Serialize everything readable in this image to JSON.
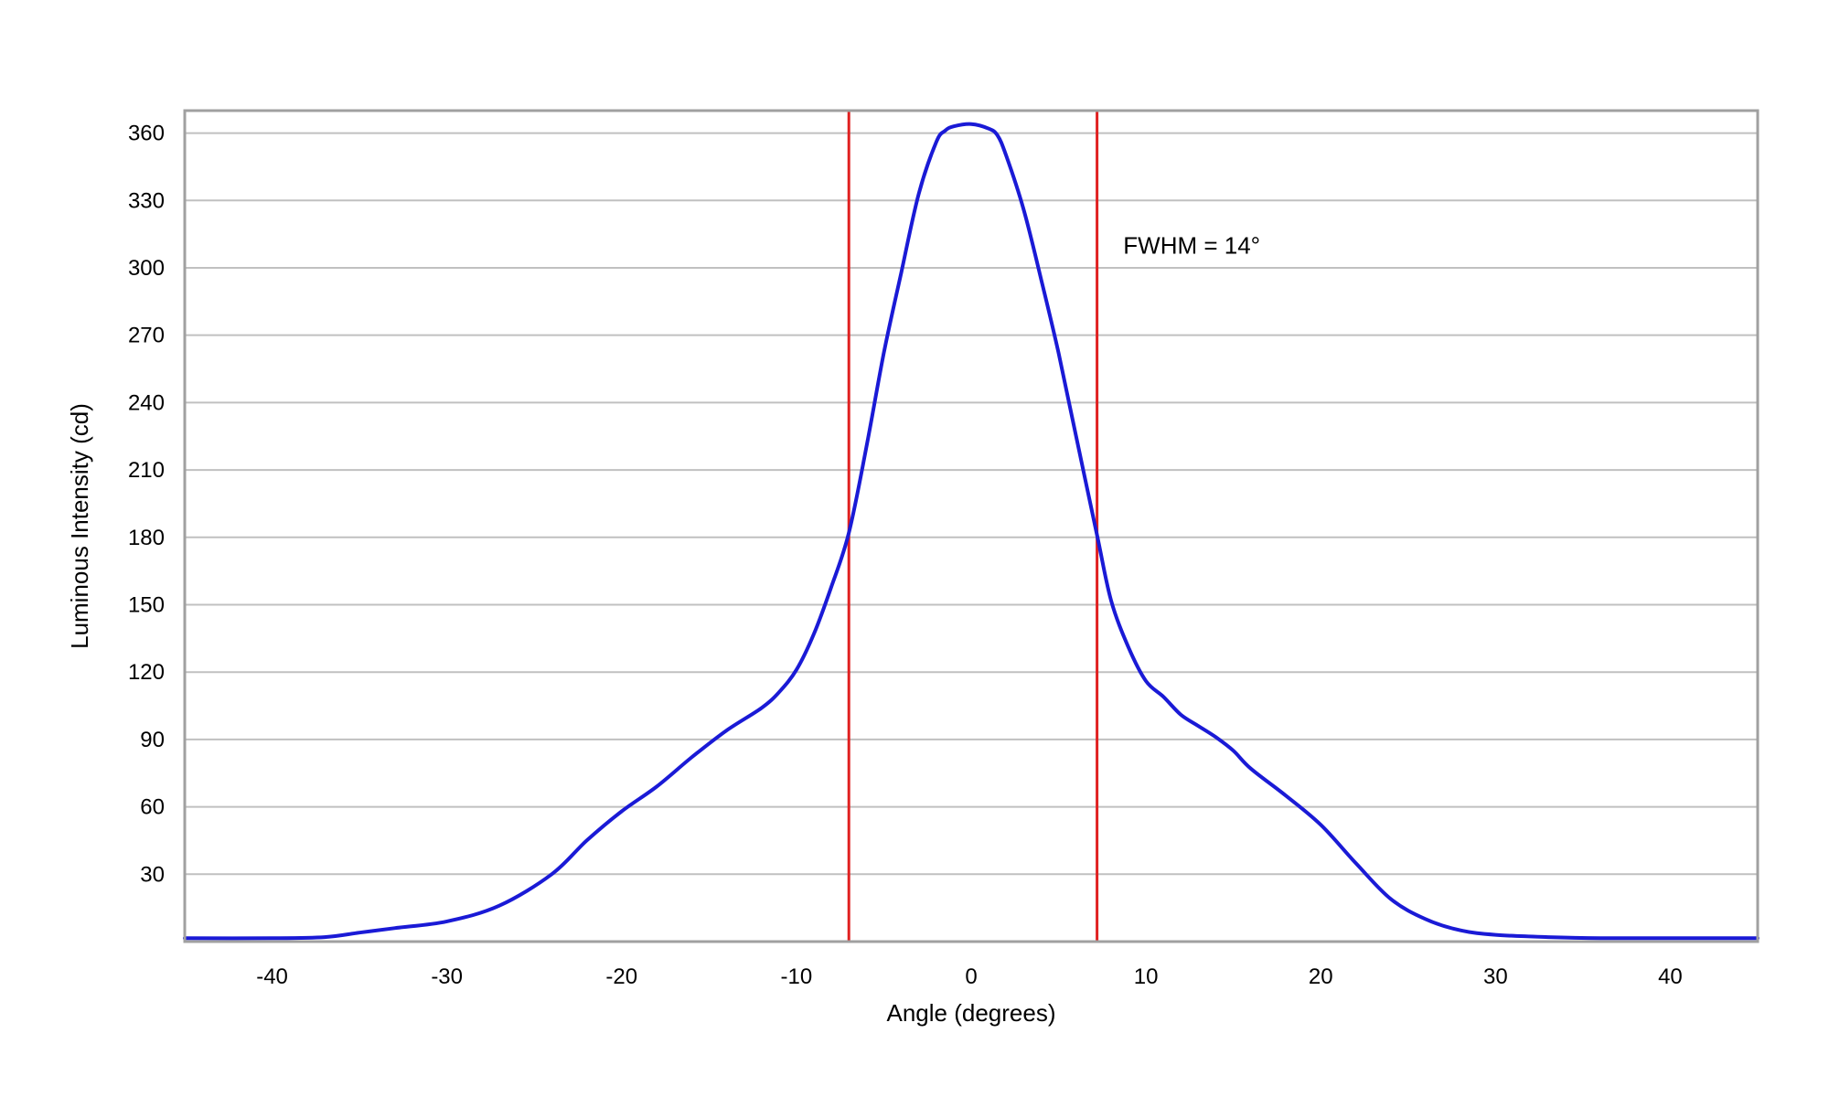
{
  "chart_data": {
    "type": "line",
    "title": "",
    "xlabel": "Angle (degrees)",
    "ylabel": "Luminous Intensity (cd)",
    "xlim": [
      -45,
      45
    ],
    "ylim": [
      0,
      370
    ],
    "xticks": [
      -40,
      -30,
      -20,
      -10,
      0,
      10,
      20,
      30,
      40
    ],
    "yticks": [
      30,
      60,
      90,
      120,
      150,
      180,
      210,
      240,
      270,
      300,
      330,
      360
    ],
    "grid": "horizontal",
    "legend": "none",
    "annotation": "FWHM = 14°",
    "colors": {
      "curve": "#1a1ad6",
      "markers": "#e02020",
      "grid": "#c0c0c0",
      "frame": "#a0a0a0"
    },
    "vertical_markers": [
      -7.0,
      7.2
    ],
    "series": [
      {
        "x": [
          -45,
          -40,
          -37,
          -35,
          -33,
          -30,
          -27,
          -24,
          -22,
          -20,
          -18,
          -16,
          -14,
          -12,
          -11,
          -10,
          -9,
          -8,
          -7,
          -6,
          -5,
          -4,
          -3,
          -2,
          -1.5,
          -1,
          0,
          1,
          1.5,
          2,
          3,
          4,
          5,
          6,
          7.2,
          8,
          9,
          10,
          11,
          12,
          13,
          14,
          15,
          16,
          18,
          20,
          22,
          24,
          26,
          28,
          30,
          33,
          36,
          40,
          45
        ],
        "y": [
          1.5,
          1.5,
          2,
          4,
          6,
          9,
          16,
          30,
          45,
          58,
          69,
          82,
          94,
          104,
          111,
          121,
          137,
          158,
          182,
          220,
          262,
          298,
          333,
          356,
          361,
          363,
          364,
          362,
          359,
          350,
          326,
          295,
          262,
          225,
          181,
          152,
          131,
          116,
          109,
          101,
          96,
          91,
          85,
          77,
          65,
          52,
          35,
          19,
          10,
          5,
          3,
          2,
          1.5,
          1.5,
          1.5
        ]
      }
    ]
  }
}
